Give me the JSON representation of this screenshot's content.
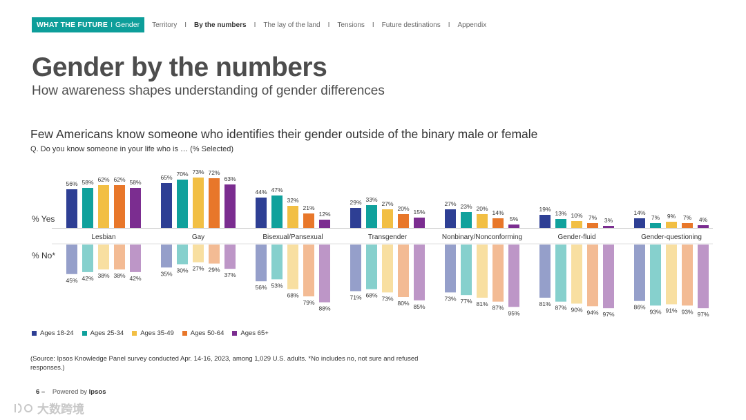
{
  "nav": {
    "brand": "WHAT THE FUTURE",
    "brand_sep": "I",
    "brand_section": "Gender",
    "items": [
      {
        "label": "Territory",
        "active": false
      },
      {
        "label": "By the numbers",
        "active": true
      },
      {
        "label": "The lay of the land",
        "active": false
      },
      {
        "label": "Tensions",
        "active": false
      },
      {
        "label": "Future destinations",
        "active": false
      },
      {
        "label": "Appendix",
        "active": false
      }
    ],
    "separator": "I"
  },
  "title": "Gender by the numbers",
  "subtitle": "How awareness shapes understanding of gender differences",
  "chart_data": {
    "type": "bar",
    "title": "Few Americans know someone who identifies their gender outside of the binary male or female",
    "subtitle": "Q. Do you know someone in your life who is … (% Selected)",
    "yes_label": "% Yes",
    "no_label": "% No*",
    "categories": [
      "Lesbian",
      "Gay",
      "Bisexual/Pansexual",
      "Transgender",
      "Nonbinary/Nonconforming",
      "Gender-fluid",
      "Gender-questioning"
    ],
    "series": [
      {
        "name": "Ages 18-24",
        "color": "#2e3f94",
        "light": "#959fca",
        "yes": [
          56,
          65,
          44,
          29,
          27,
          19,
          14
        ],
        "no": [
          45,
          35,
          56,
          71,
          73,
          81,
          86
        ]
      },
      {
        "name": "Ages 25-34",
        "color": "#10a19c",
        "light": "#86d0cd",
        "yes": [
          58,
          70,
          47,
          33,
          23,
          13,
          7
        ],
        "no": [
          42,
          30,
          53,
          68,
          77,
          87,
          93
        ]
      },
      {
        "name": "Ages 35-49",
        "color": "#f2bf44",
        "light": "#f8dfa1",
        "yes": [
          62,
          73,
          32,
          27,
          20,
          10,
          9
        ],
        "no": [
          38,
          27,
          68,
          73,
          81,
          90,
          91
        ]
      },
      {
        "name": "Ages 50-64",
        "color": "#e8772a",
        "light": "#f3bb94",
        "yes": [
          62,
          72,
          21,
          20,
          14,
          7,
          7
        ],
        "no": [
          38,
          29,
          79,
          80,
          87,
          94,
          93
        ]
      },
      {
        "name": "Ages 65+",
        "color": "#7b2d90",
        "light": "#bd96c7",
        "yes": [
          58,
          63,
          12,
          15,
          5,
          3,
          4
        ],
        "no": [
          42,
          37,
          88,
          85,
          95,
          97,
          97
        ]
      }
    ],
    "value_suffix": "%"
  },
  "source": "(Source: Ipsos Knowledge Panel survey conducted Apr. 14-16, 2023, among 1,029 U.S. adults. *No includes no, not sure and refused responses.)",
  "footer": {
    "page_num": "6 –",
    "powered_by": "Powered by",
    "brand": "Ipsos"
  },
  "watermark": {
    "text": "大数跨境",
    "icon": "watermark-logo-icon"
  },
  "colors": {
    "brand": "#0d9e9a"
  }
}
